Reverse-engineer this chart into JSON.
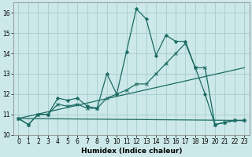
{
  "xlabel": "Humidex (Indice chaleur)",
  "bg_color": "#cce8e8",
  "grid_color": "#aad0d0",
  "line_color": "#1a6b63",
  "xlim": [
    -0.5,
    23.5
  ],
  "ylim": [
    10,
    16.5
  ],
  "yticks": [
    10,
    11,
    12,
    13,
    14,
    15,
    16
  ],
  "xticks": [
    0,
    1,
    2,
    3,
    4,
    5,
    6,
    7,
    8,
    9,
    10,
    11,
    12,
    13,
    14,
    15,
    16,
    17,
    18,
    19,
    20,
    21,
    22,
    23
  ],
  "main_x": [
    0,
    1,
    2,
    3,
    4,
    5,
    6,
    7,
    8,
    9,
    10,
    11,
    12,
    13,
    14,
    15,
    16,
    17,
    18,
    19,
    20,
    21,
    22,
    23
  ],
  "main_y": [
    10.8,
    10.5,
    11.0,
    11.0,
    11.8,
    11.7,
    11.8,
    11.4,
    11.3,
    13.0,
    12.0,
    14.1,
    16.2,
    15.7,
    13.9,
    14.9,
    14.6,
    14.6,
    13.3,
    12.0,
    10.5,
    10.6,
    10.7,
    10.7
  ],
  "smooth_x": [
    0,
    1,
    2,
    3,
    4,
    5,
    6,
    7,
    8,
    9,
    10,
    11,
    12,
    13,
    14,
    15,
    16,
    17,
    18,
    19,
    20,
    21,
    22,
    23
  ],
  "smooth_y": [
    10.8,
    10.5,
    11.0,
    11.0,
    11.5,
    11.4,
    11.5,
    11.3,
    11.3,
    11.8,
    12.0,
    12.2,
    12.5,
    12.5,
    13.0,
    13.5,
    14.0,
    14.5,
    13.3,
    13.3,
    10.5,
    10.6,
    10.7,
    10.7
  ],
  "trend1_x": [
    0,
    23
  ],
  "trend1_y": [
    10.8,
    13.3
  ],
  "trend2_x": [
    0,
    23
  ],
  "trend2_y": [
    10.8,
    10.7
  ],
  "xlabel_fontsize": 6.5,
  "tick_fontsize": 5.5
}
